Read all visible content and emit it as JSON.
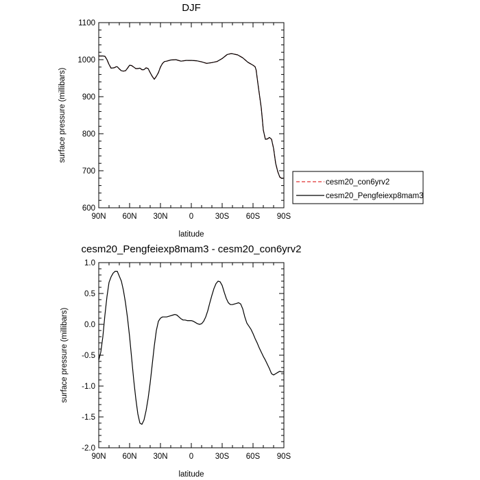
{
  "chart_data": [
    {
      "type": "line",
      "title": "DJF",
      "xlabel": "latitude",
      "ylabel": "surface pressure (millibars)",
      "xlim": [
        90,
        -90
      ],
      "ylim": [
        600,
        1100
      ],
      "x_ticks": [
        90,
        60,
        30,
        0,
        -30,
        -60,
        -90
      ],
      "x_tick_labels": [
        "90N",
        "60N",
        "30N",
        "0",
        "30S",
        "60S",
        "90S"
      ],
      "y_ticks": [
        600,
        700,
        800,
        900,
        1000,
        1100
      ],
      "y_tick_labels": [
        "600",
        "700",
        "800",
        "900",
        "1000",
        "1100"
      ],
      "legend_position": "outside-right",
      "series": [
        {
          "name": "cesm20_con6yrv2",
          "color": "#e03030",
          "dash": "dashed",
          "x": [
            90,
            86,
            84,
            82,
            80,
            78,
            75,
            73,
            72,
            70,
            68,
            66,
            64,
            62,
            60,
            58,
            56,
            54,
            52,
            50,
            48,
            46,
            44,
            42,
            40,
            38,
            36,
            34,
            32,
            30,
            28,
            26,
            24,
            20,
            15,
            10,
            5,
            0,
            -5,
            -10,
            -15,
            -20,
            -25,
            -30,
            -35,
            -38,
            -40,
            -45,
            -50,
            -55,
            -60,
            -62,
            -63,
            -65,
            -68,
            -70,
            -72,
            -74,
            -76,
            -78,
            -80,
            -82,
            -84,
            -86,
            -88,
            -90
          ],
          "y": [
            1010,
            1010,
            1009,
            1000,
            987,
            977,
            978,
            981,
            981,
            975,
            970,
            969,
            970,
            977,
            985,
            984,
            980,
            976,
            976,
            977,
            973,
            973,
            978,
            976,
            965,
            955,
            947,
            955,
            965,
            980,
            990,
            995,
            996,
            999,
            1000,
            996,
            998,
            998,
            997,
            994,
            990,
            992,
            995,
            1003,
            1014,
            1016,
            1016,
            1013,
            1005,
            993,
            985,
            981,
            972,
            930,
            870,
            810,
            785,
            786,
            790,
            785,
            760,
            720,
            698,
            683,
            679,
            680
          ]
        },
        {
          "name": "cesm20_Pengfeiexp8mam3",
          "color": "#000000",
          "dash": "solid",
          "x": [
            90,
            86,
            84,
            82,
            80,
            78,
            75,
            73,
            72,
            70,
            68,
            66,
            64,
            62,
            60,
            58,
            56,
            54,
            52,
            50,
            48,
            46,
            44,
            42,
            40,
            38,
            36,
            34,
            32,
            30,
            28,
            26,
            24,
            20,
            15,
            10,
            5,
            0,
            -5,
            -10,
            -15,
            -20,
            -25,
            -30,
            -35,
            -38,
            -40,
            -45,
            -50,
            -55,
            -60,
            -62,
            -63,
            -65,
            -68,
            -70,
            -72,
            -74,
            -76,
            -78,
            -80,
            -82,
            -84,
            -86,
            -88,
            -90
          ],
          "y": [
            1010,
            1010,
            1009,
            1000,
            987,
            977,
            978,
            981,
            981,
            975,
            970,
            969,
            970,
            977,
            985,
            984,
            980,
            976,
            976,
            977,
            973,
            973,
            978,
            976,
            965,
            955,
            947,
            955,
            965,
            980,
            990,
            995,
            996,
            999,
            1000,
            996,
            998,
            998,
            997,
            994,
            990,
            992,
            995,
            1003,
            1014,
            1016,
            1016,
            1013,
            1005,
            993,
            985,
            981,
            972,
            930,
            870,
            810,
            785,
            786,
            790,
            785,
            760,
            720,
            698,
            683,
            679,
            680
          ]
        }
      ]
    },
    {
      "type": "line",
      "title": "cesm20_Pengfeiexp8mam3 - cesm20_con6yrv2",
      "xlabel": "latitude",
      "ylabel": "surface pressure (millibars)",
      "xlim": [
        90,
        -90
      ],
      "ylim": [
        -2.0,
        1.0
      ],
      "x_ticks": [
        90,
        60,
        30,
        0,
        -30,
        -60,
        -90
      ],
      "x_tick_labels": [
        "90N",
        "60N",
        "30N",
        "0",
        "30S",
        "60S",
        "90S"
      ],
      "y_ticks": [
        -2.0,
        -1.5,
        -1.0,
        -0.5,
        0.0,
        0.5,
        1.0
      ],
      "y_tick_labels": [
        "-2.0",
        "-1.5",
        "-1.0",
        "-0.5",
        "0.0",
        "0.5",
        "1.0"
      ],
      "series": [
        {
          "color": "#000000",
          "dash": "solid",
          "x": [
            90,
            88,
            86,
            84,
            82,
            80,
            78,
            76,
            74,
            72,
            70,
            68,
            66,
            64,
            62,
            60,
            58,
            56,
            54,
            52,
            50,
            48,
            46,
            44,
            42,
            40,
            38,
            36,
            34,
            32,
            30,
            28,
            26,
            24,
            22,
            20,
            18,
            16,
            14,
            12,
            10,
            8,
            6,
            4,
            2,
            0,
            -2,
            -4,
            -6,
            -8,
            -10,
            -12,
            -14,
            -16,
            -18,
            -20,
            -22,
            -24,
            -26,
            -28,
            -30,
            -32,
            -34,
            -36,
            -38,
            -40,
            -42,
            -44,
            -46,
            -48,
            -50,
            -52,
            -54,
            -56,
            -58,
            -60,
            -62,
            -64,
            -66,
            -68,
            -70,
            -72,
            -74,
            -76,
            -78,
            -80,
            -82,
            -84,
            -86,
            -88,
            -90
          ],
          "y": [
            -0.58,
            -0.45,
            -0.2,
            0.15,
            0.45,
            0.68,
            0.77,
            0.83,
            0.86,
            0.86,
            0.78,
            0.7,
            0.55,
            0.35,
            0.1,
            -0.2,
            -0.55,
            -0.9,
            -1.2,
            -1.45,
            -1.6,
            -1.62,
            -1.55,
            -1.4,
            -1.2,
            -0.95,
            -0.65,
            -0.35,
            -0.1,
            0.05,
            0.1,
            0.12,
            0.12,
            0.12,
            0.13,
            0.14,
            0.15,
            0.16,
            0.15,
            0.12,
            0.09,
            0.07,
            0.07,
            0.06,
            0.06,
            0.06,
            0.05,
            0.03,
            0.01,
            0.0,
            0.01,
            0.05,
            0.12,
            0.22,
            0.35,
            0.47,
            0.58,
            0.66,
            0.7,
            0.69,
            0.63,
            0.52,
            0.42,
            0.35,
            0.32,
            0.32,
            0.33,
            0.34,
            0.35,
            0.33,
            0.25,
            0.12,
            0.02,
            -0.03,
            -0.08,
            -0.15,
            -0.23,
            -0.3,
            -0.38,
            -0.45,
            -0.52,
            -0.58,
            -0.65,
            -0.72,
            -0.8,
            -0.82,
            -0.8,
            -0.78,
            -0.76,
            -0.77,
            -0.77
          ]
        }
      ]
    }
  ]
}
